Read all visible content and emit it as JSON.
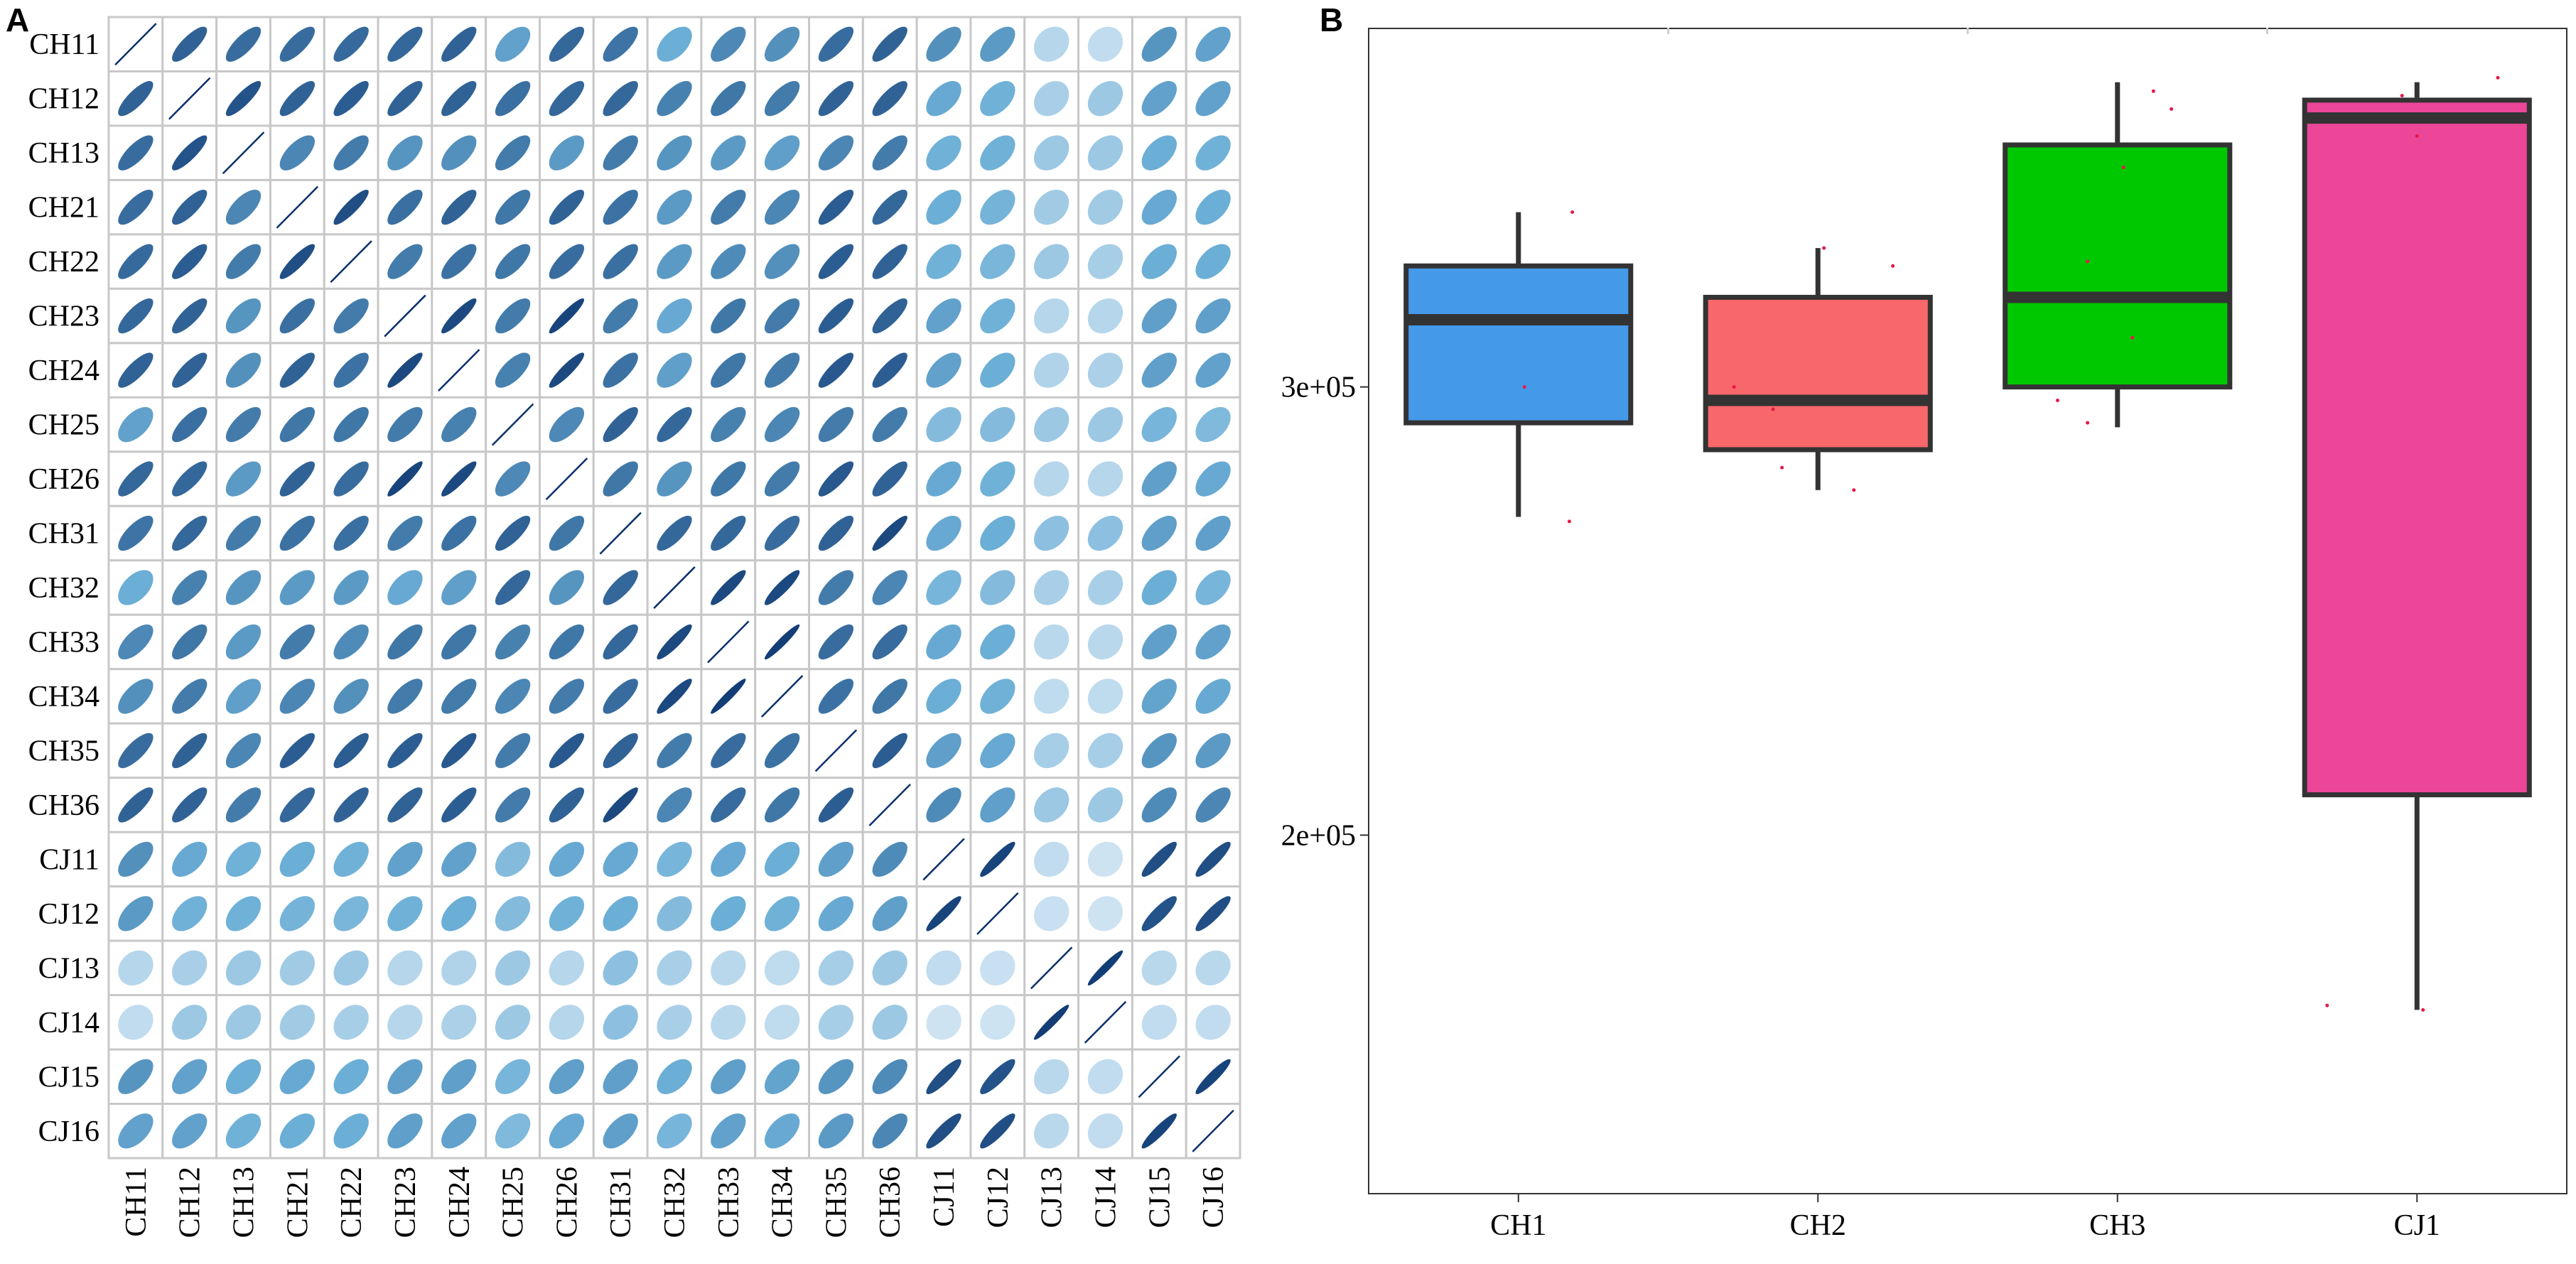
{
  "panels": {
    "a_letter": "A",
    "b_letter": "B"
  },
  "chart_data": [
    {
      "type": "heatmap",
      "subtype": "correlation-ellipse",
      "panel": "A",
      "labels": [
        "CH11",
        "CH12",
        "CH13",
        "CH21",
        "CH22",
        "CH23",
        "CH24",
        "CH25",
        "CH26",
        "CH31",
        "CH32",
        "CH33",
        "CH34",
        "CH35",
        "CH36",
        "CJ11",
        "CJ12",
        "CJ13",
        "CJ14",
        "CJ15",
        "CJ16"
      ],
      "value_range": [
        0,
        1
      ],
      "colors": {
        "low": "#e6f0f9",
        "high": "#08306b",
        "grid": "#c8c8c8",
        "diagonal_line": "#08306b"
      },
      "matrix": [
        [
          1.0,
          0.8,
          0.76,
          0.76,
          0.77,
          0.78,
          0.8,
          0.55,
          0.78,
          0.73,
          0.5,
          0.65,
          0.62,
          0.76,
          0.8,
          0.62,
          0.58,
          0.2,
          0.15,
          0.6,
          0.55
        ],
        [
          0.8,
          1.0,
          0.86,
          0.8,
          0.82,
          0.8,
          0.8,
          0.75,
          0.78,
          0.78,
          0.68,
          0.72,
          0.7,
          0.8,
          0.8,
          0.52,
          0.48,
          0.25,
          0.3,
          0.55,
          0.55
        ],
        [
          0.76,
          0.86,
          1.0,
          0.66,
          0.7,
          0.6,
          0.62,
          0.7,
          0.58,
          0.7,
          0.6,
          0.58,
          0.56,
          0.66,
          0.7,
          0.48,
          0.48,
          0.3,
          0.3,
          0.5,
          0.48
        ],
        [
          0.76,
          0.8,
          0.66,
          1.0,
          0.88,
          0.75,
          0.8,
          0.72,
          0.8,
          0.74,
          0.58,
          0.7,
          0.66,
          0.82,
          0.78,
          0.5,
          0.46,
          0.28,
          0.28,
          0.52,
          0.5
        ],
        [
          0.77,
          0.82,
          0.7,
          0.88,
          1.0,
          0.7,
          0.74,
          0.72,
          0.76,
          0.75,
          0.58,
          0.64,
          0.62,
          0.82,
          0.8,
          0.48,
          0.44,
          0.3,
          0.26,
          0.5,
          0.5
        ],
        [
          0.78,
          0.8,
          0.6,
          0.75,
          0.7,
          1.0,
          0.9,
          0.7,
          0.92,
          0.7,
          0.52,
          0.72,
          0.7,
          0.82,
          0.8,
          0.55,
          0.48,
          0.2,
          0.2,
          0.56,
          0.56
        ],
        [
          0.8,
          0.8,
          0.62,
          0.8,
          0.74,
          0.9,
          1.0,
          0.68,
          0.9,
          0.74,
          0.56,
          0.72,
          0.7,
          0.84,
          0.82,
          0.55,
          0.5,
          0.22,
          0.24,
          0.56,
          0.55
        ],
        [
          0.55,
          0.75,
          0.7,
          0.72,
          0.72,
          0.7,
          0.68,
          1.0,
          0.65,
          0.8,
          0.78,
          0.68,
          0.66,
          0.7,
          0.7,
          0.4,
          0.4,
          0.3,
          0.3,
          0.45,
          0.42
        ],
        [
          0.78,
          0.78,
          0.58,
          0.8,
          0.76,
          0.92,
          0.9,
          0.65,
          1.0,
          0.72,
          0.6,
          0.72,
          0.7,
          0.84,
          0.8,
          0.52,
          0.48,
          0.2,
          0.2,
          0.56,
          0.52
        ],
        [
          0.73,
          0.78,
          0.7,
          0.74,
          0.75,
          0.7,
          0.74,
          0.8,
          0.72,
          1.0,
          0.78,
          0.78,
          0.76,
          0.8,
          0.9,
          0.52,
          0.5,
          0.36,
          0.36,
          0.56,
          0.56
        ],
        [
          0.5,
          0.68,
          0.6,
          0.58,
          0.58,
          0.52,
          0.56,
          0.78,
          0.6,
          0.78,
          1.0,
          0.9,
          0.9,
          0.7,
          0.66,
          0.45,
          0.4,
          0.25,
          0.25,
          0.5,
          0.45
        ],
        [
          0.65,
          0.72,
          0.58,
          0.7,
          0.64,
          0.72,
          0.72,
          0.68,
          0.72,
          0.78,
          0.9,
          1.0,
          0.95,
          0.76,
          0.76,
          0.52,
          0.5,
          0.18,
          0.18,
          0.56,
          0.55
        ],
        [
          0.62,
          0.7,
          0.56,
          0.66,
          0.62,
          0.7,
          0.7,
          0.66,
          0.7,
          0.76,
          0.9,
          0.95,
          1.0,
          0.74,
          0.72,
          0.5,
          0.48,
          0.16,
          0.16,
          0.54,
          0.52
        ],
        [
          0.76,
          0.8,
          0.66,
          0.82,
          0.82,
          0.82,
          0.84,
          0.7,
          0.84,
          0.8,
          0.7,
          0.76,
          0.74,
          1.0,
          0.82,
          0.56,
          0.52,
          0.26,
          0.26,
          0.6,
          0.58
        ],
        [
          0.8,
          0.8,
          0.7,
          0.78,
          0.8,
          0.8,
          0.82,
          0.7,
          0.8,
          0.9,
          0.66,
          0.76,
          0.72,
          0.82,
          1.0,
          0.64,
          0.56,
          0.3,
          0.3,
          0.64,
          0.66
        ],
        [
          0.62,
          0.52,
          0.48,
          0.5,
          0.48,
          0.55,
          0.55,
          0.4,
          0.52,
          0.52,
          0.45,
          0.52,
          0.5,
          0.56,
          0.64,
          1.0,
          0.92,
          0.15,
          0.1,
          0.88,
          0.88
        ],
        [
          0.58,
          0.48,
          0.48,
          0.46,
          0.44,
          0.48,
          0.5,
          0.4,
          0.48,
          0.5,
          0.4,
          0.5,
          0.48,
          0.52,
          0.56,
          0.92,
          1.0,
          0.12,
          0.1,
          0.86,
          0.88
        ],
        [
          0.2,
          0.25,
          0.3,
          0.28,
          0.3,
          0.2,
          0.22,
          0.3,
          0.2,
          0.36,
          0.25,
          0.18,
          0.16,
          0.26,
          0.3,
          0.15,
          0.12,
          1.0,
          0.95,
          0.18,
          0.18
        ],
        [
          0.15,
          0.3,
          0.3,
          0.28,
          0.26,
          0.2,
          0.24,
          0.3,
          0.2,
          0.36,
          0.25,
          0.18,
          0.16,
          0.26,
          0.3,
          0.1,
          0.1,
          0.95,
          1.0,
          0.15,
          0.15
        ],
        [
          0.6,
          0.55,
          0.5,
          0.52,
          0.5,
          0.56,
          0.56,
          0.45,
          0.56,
          0.56,
          0.5,
          0.56,
          0.54,
          0.6,
          0.64,
          0.88,
          0.86,
          0.18,
          0.15,
          1.0,
          0.92
        ],
        [
          0.55,
          0.55,
          0.48,
          0.5,
          0.5,
          0.56,
          0.55,
          0.42,
          0.52,
          0.56,
          0.45,
          0.55,
          0.52,
          0.58,
          0.66,
          0.88,
          0.88,
          0.18,
          0.15,
          0.92,
          1.0
        ]
      ]
    },
    {
      "type": "box",
      "panel": "B",
      "title": "",
      "xlabel": "",
      "ylabel": "",
      "ylim": [
        120000,
        380000
      ],
      "yticks": [
        200000,
        300000
      ],
      "ytick_labels": [
        "2e+05",
        "3e+05"
      ],
      "categories": [
        "CH1",
        "CH2",
        "CH3",
        "CJ1"
      ],
      "boxes": [
        {
          "name": "CH1",
          "color": "#4499e9",
          "whisker_low": 271000,
          "q1": 292000,
          "median": 315000,
          "q3": 327000,
          "whisker_high": 339000,
          "points": [
            [
              0.18,
              339000
            ],
            [
              0.17,
              270000
            ],
            [
              0.02,
              300000
            ]
          ]
        },
        {
          "name": "CH2",
          "color": "#f8676a",
          "whisker_low": 277000,
          "q1": 286000,
          "median": 297000,
          "q3": 320000,
          "whisker_high": 331000,
          "points": [
            [
              -0.28,
              300000
            ],
            [
              -0.15,
              295000
            ],
            [
              -0.12,
              282000
            ],
            [
              0.12,
              277000
            ],
            [
              0.25,
              327000
            ],
            [
              0.02,
              331000
            ]
          ]
        },
        {
          "name": "CH3",
          "color": "#00c800",
          "whisker_low": 291000,
          "q1": 300000,
          "median": 320000,
          "q3": 354000,
          "whisker_high": 368000,
          "points": [
            [
              -0.2,
              297000
            ],
            [
              -0.1,
              292000
            ],
            [
              0.12,
              366000
            ],
            [
              0.18,
              362000
            ],
            [
              0.02,
              349000
            ],
            [
              -0.1,
              328000
            ],
            [
              0.05,
              311000
            ]
          ]
        },
        {
          "name": "CJ1",
          "color": "#ec4698",
          "whisker_low": 161000,
          "q1": 209000,
          "median": 360000,
          "q3": 364000,
          "whisker_high": 368000,
          "points": [
            [
              -0.3,
              162000
            ],
            [
              0.02,
              161000
            ],
            [
              0.0,
              356000
            ],
            [
              0.27,
              369000
            ],
            [
              -0.05,
              365000
            ]
          ]
        }
      ],
      "colors": {
        "box_line": "#333333",
        "point": "#e8174c",
        "axis_frame": "#333333",
        "tick_mark": "#cccccc"
      }
    }
  ]
}
